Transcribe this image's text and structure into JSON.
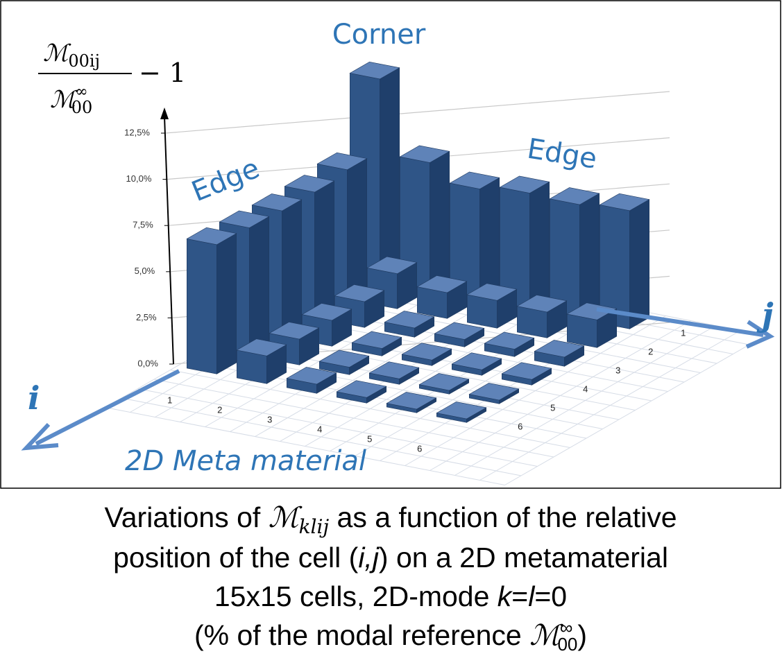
{
  "chart_data": {
    "type": "bar3d",
    "ylabel": {
      "numerator": [
        "ℳ",
        "00ij"
      ],
      "denominator": [
        "ℳ",
        "∞",
        "00"
      ],
      "suffix": "− 1"
    },
    "annotations": {
      "corner": "Corner",
      "edge_left": "Edge",
      "edge_right": "Edge",
      "material": "2D Meta material",
      "i_axis": "i",
      "j_axis": "j"
    },
    "rows": [
      "1",
      "2",
      "3",
      "4",
      "5",
      "6"
    ],
    "columns": [
      "1",
      "2",
      "3",
      "4",
      "5",
      "6"
    ],
    "values": [
      [
        10.9,
        7.0,
        6.8,
        6.8,
        6.9,
        7.0
      ],
      [
        6.9,
        1.9,
        1.4,
        1.4,
        1.4,
        1.5
      ],
      [
        6.0,
        1.4,
        0.5,
        0.4,
        0.4,
        0.5
      ],
      [
        6.3,
        1.5,
        0.4,
        0.3,
        0.3,
        0.3
      ],
      [
        6.2,
        1.4,
        0.4,
        0.3,
        0.2,
        0.2
      ],
      [
        6.4,
        1.5,
        0.5,
        0.3,
        0.2,
        0.2
      ]
    ],
    "color": "#2f5587",
    "ylim": [
      0,
      12.5
    ],
    "yticks": [
      {
        "value": 0,
        "label": "0,0%"
      },
      {
        "value": 2.5,
        "label": "2,5%"
      },
      {
        "value": 5,
        "label": "5,0%"
      },
      {
        "value": 7.5,
        "label": "7,5%"
      },
      {
        "value": 10,
        "label": "10,0%"
      },
      {
        "value": 12.5,
        "label": "12,5%"
      }
    ],
    "grid": true
  },
  "caption": {
    "line1": [
      "Variations of ",
      "ℳ",
      "klij",
      " as a function of the relative"
    ],
    "line2": [
      "position of the cell (",
      "i,j",
      ") on a 2D metamaterial"
    ],
    "line3": [
      "15x15 cells, 2D-mode ",
      "k",
      "=",
      "l",
      "=0"
    ],
    "line4": [
      "(% of the modal reference ",
      "ℳ",
      "∞",
      "00",
      ")"
    ]
  }
}
